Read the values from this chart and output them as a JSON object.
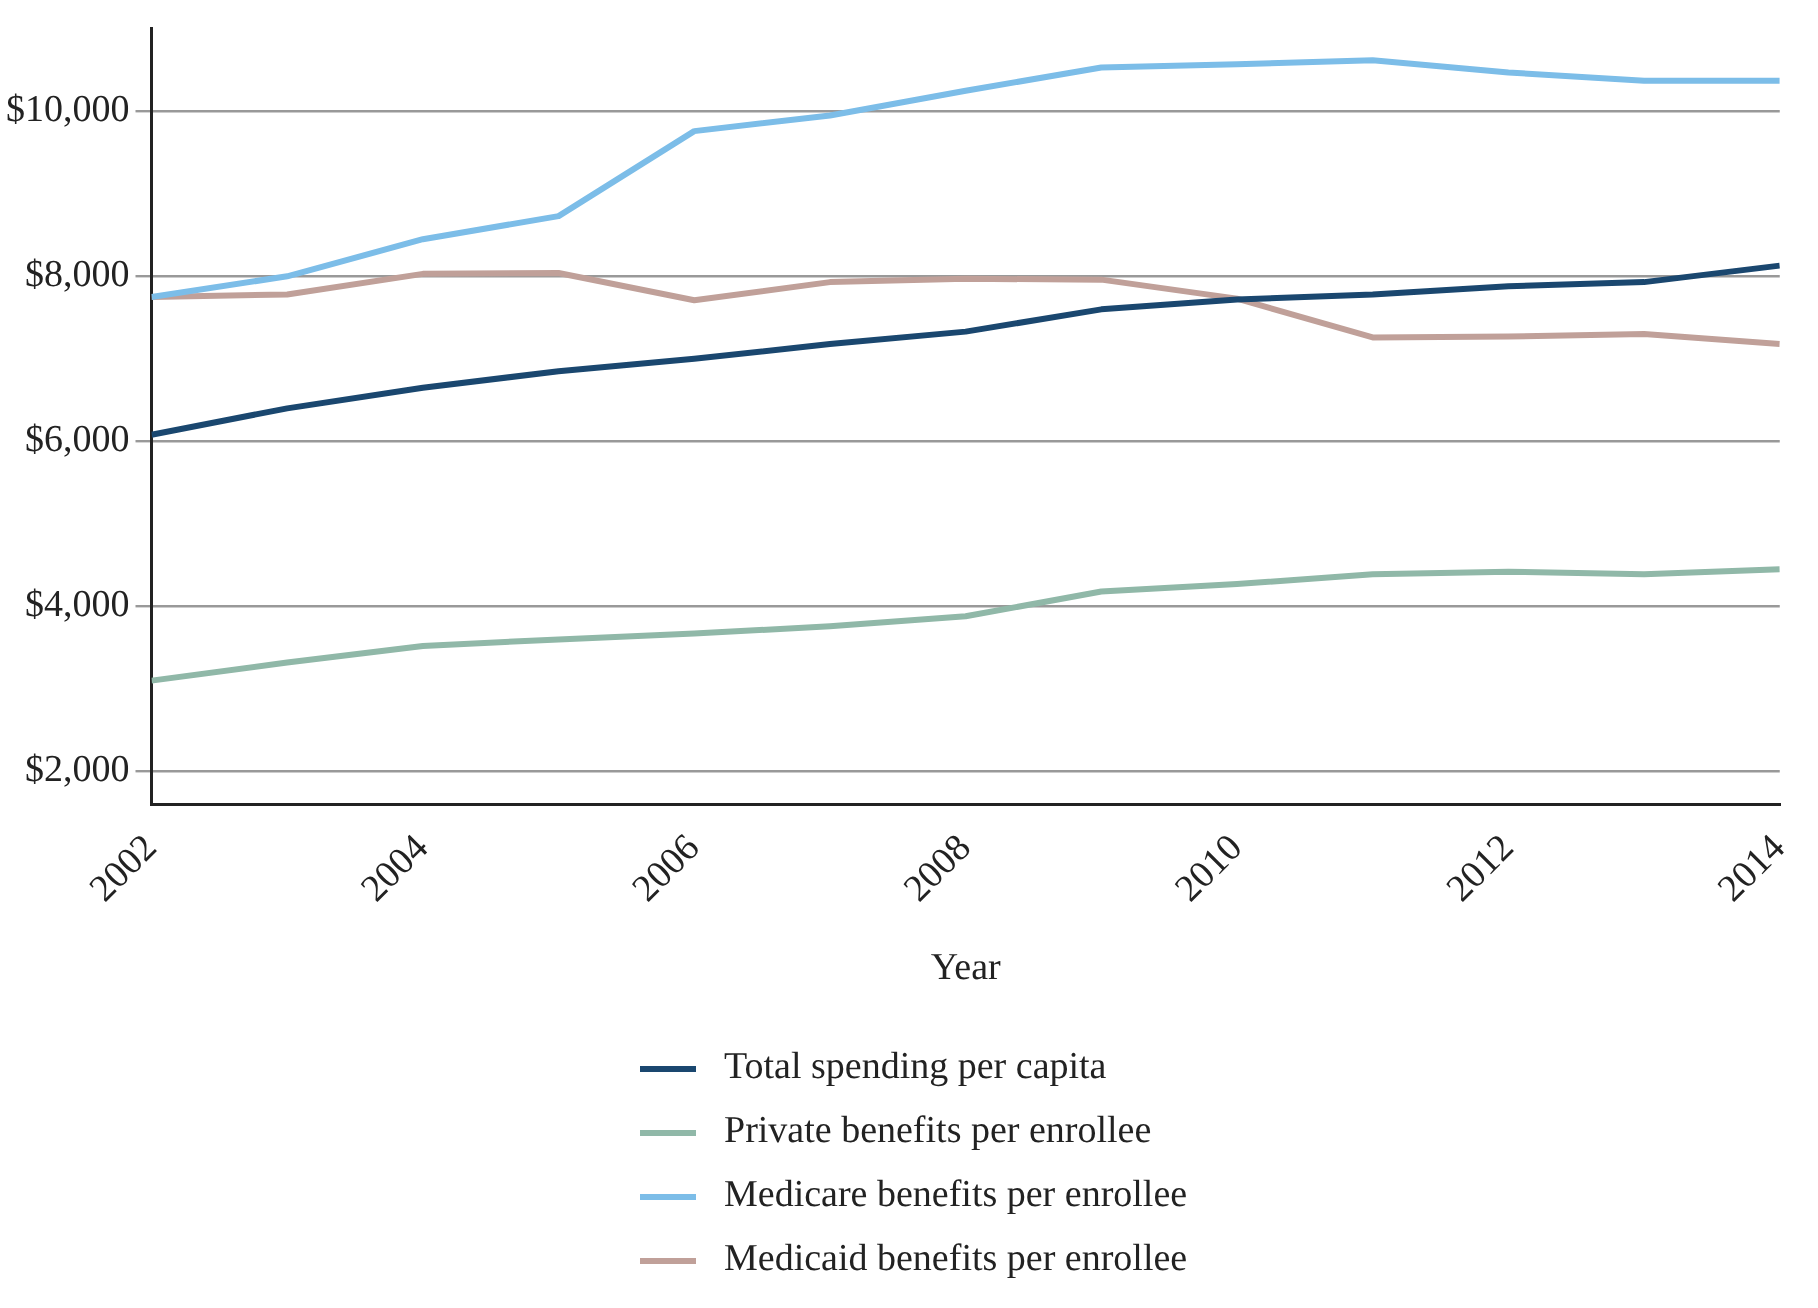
{
  "chart_data": {
    "type": "line",
    "xlabel": "Year",
    "x": [
      2002,
      2003,
      2004,
      2005,
      2006,
      2007,
      2008,
      2009,
      2010,
      2011,
      2012,
      2013,
      2014
    ],
    "xlim": [
      2002,
      2014
    ],
    "xticks": [
      2002,
      2004,
      2006,
      2008,
      2010,
      2012,
      2014
    ],
    "ylim": [
      1600,
      11000
    ],
    "yticks": [
      {
        "value": 2000,
        "label": "$2,000"
      },
      {
        "value": 4000,
        "label": "$4,000"
      },
      {
        "value": 6000,
        "label": "$6,000"
      },
      {
        "value": 8000,
        "label": "$8,000"
      },
      {
        "value": 10000,
        "label": "$10,000"
      }
    ],
    "grid": "y",
    "legend": "bottom",
    "marker": "none",
    "line_style": "solid",
    "series": [
      {
        "name": "Total spending per capita",
        "color": "#1a476f",
        "values": [
          6080,
          6400,
          6650,
          6850,
          7000,
          7180,
          7330,
          7600,
          7720,
          7780,
          7880,
          7930,
          8130
        ]
      },
      {
        "name": "Private benefits per enrollee",
        "color": "#90b8a8",
        "values": [
          3100,
          3320,
          3520,
          3600,
          3670,
          3760,
          3880,
          4180,
          4270,
          4390,
          4420,
          4390,
          4450
        ]
      },
      {
        "name": "Medicare benefits per enrollee",
        "color": "#7cbde8",
        "values": [
          7750,
          8000,
          8450,
          8730,
          9760,
          9950,
          10250,
          10530,
          10570,
          10620,
          10470,
          10370,
          10370
        ]
      },
      {
        "name": "Medicaid benefits per enrollee",
        "color": "#c0a099",
        "values": [
          7750,
          7780,
          8030,
          8040,
          7710,
          7930,
          7970,
          7960,
          7730,
          7260,
          7270,
          7300,
          7180
        ]
      }
    ]
  }
}
